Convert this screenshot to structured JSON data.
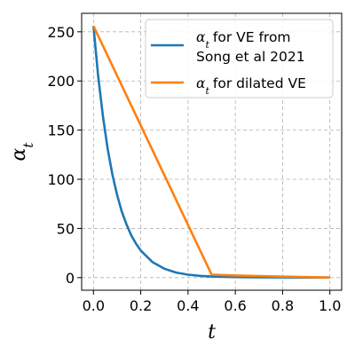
{
  "chart_data": {
    "type": "line",
    "xlabel": "t",
    "ylabel": "α_t",
    "xlim": [
      -0.05,
      1.05
    ],
    "ylim": [
      -12.8,
      268.8
    ],
    "xticks": [
      0.0,
      0.2,
      0.4,
      0.6,
      0.8,
      1.0
    ],
    "xtick_labels": [
      "0.0",
      "0.2",
      "0.4",
      "0.6",
      "0.8",
      "1.0"
    ],
    "yticks": [
      0,
      50,
      100,
      150,
      200,
      250
    ],
    "ytick_labels": [
      "0",
      "50",
      "100",
      "150",
      "200",
      "250"
    ],
    "grid": true,
    "legend_position": "top-right",
    "series": [
      {
        "name": "α_t for VE from Song et al 2021",
        "legend_lines": [
          "for VE from",
          "Song et al 2021"
        ],
        "color": "#1f77b4",
        "x": [
          0.0,
          0.02,
          0.04,
          0.06,
          0.08,
          0.1,
          0.12,
          0.14,
          0.16,
          0.18,
          0.2,
          0.25,
          0.3,
          0.35,
          0.4,
          0.45,
          0.5,
          0.6,
          0.7,
          0.8,
          0.9,
          1.0
        ],
        "y": [
          256,
          205,
          164,
          131,
          105,
          84,
          67,
          54,
          43,
          34.5,
          27.5,
          15.7,
          9.0,
          5.2,
          3.0,
          1.8,
          1.1,
          0.6,
          0.35,
          0.2,
          0.12,
          0.07
        ]
      },
      {
        "name": "α_t for dilated VE",
        "legend_lines": [
          "for dilated VE"
        ],
        "color": "#ff7f0e",
        "x": [
          0.0,
          0.5,
          0.6,
          0.7,
          0.8,
          0.9,
          1.0
        ],
        "y": [
          256,
          3.0,
          2.2,
          1.6,
          1.0,
          0.6,
          0.1
        ]
      }
    ]
  }
}
